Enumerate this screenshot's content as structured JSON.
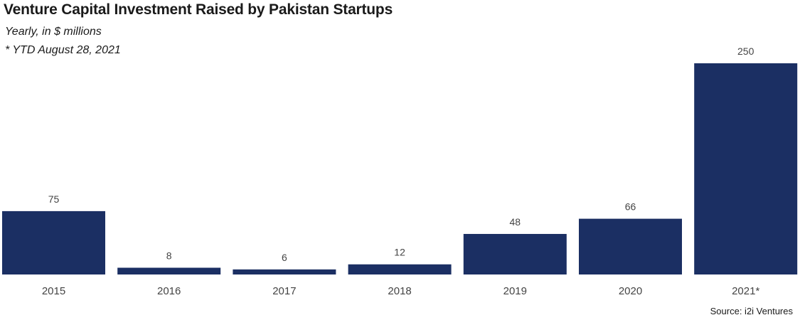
{
  "chart_data": {
    "type": "bar",
    "title": "Venture Capital Investment Raised by Pakistan Startups",
    "subtitle": "Yearly, in $ millions",
    "note": "* YTD August 28, 2021",
    "source": "Source: i2i Ventures",
    "categories": [
      "2015",
      "2016",
      "2017",
      "2018",
      "2019",
      "2020",
      "2021*"
    ],
    "values": [
      75,
      8,
      6,
      12,
      48,
      66,
      250
    ],
    "data_labels": [
      "75",
      "8",
      "6",
      "12",
      "48",
      "66",
      "250"
    ],
    "ylim": [
      0,
      250
    ],
    "grid": false,
    "legend": "none",
    "bar_color": "#1b2f63"
  }
}
